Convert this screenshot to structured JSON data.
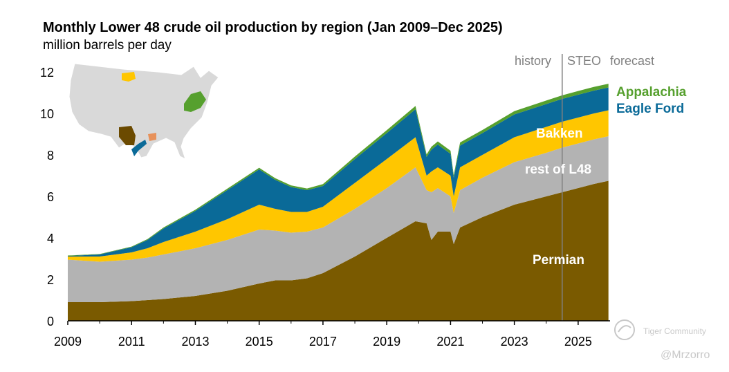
{
  "header": {
    "title": "Monthly Lower 48 crude oil production by region (Jan 2009–Dec 2025)",
    "subtitle": "million barrels per day"
  },
  "annotations": {
    "history": "history",
    "steo": "STEO",
    "forecast": "forecast"
  },
  "watermark": {
    "name": "Tiger Community",
    "handle": "@Mrzorro"
  },
  "colors": {
    "Permian": "#7a5a00",
    "rest of L48": "#b3b3b3",
    "Bakken": "#ffc600",
    "Eagle Ford": "#0a6a98",
    "Appalachia": "#56a02e"
  },
  "map": {
    "highlighted_regions": [
      "Bakken",
      "Appalachia",
      "Permian",
      "Eagle Ford",
      "Haynesville"
    ]
  },
  "chart_data": {
    "type": "area",
    "stacked": true,
    "title": "Monthly Lower 48 crude oil production by region (Jan 2009–Dec 2025)",
    "ylabel": "million barrels per day",
    "xlabel": "",
    "xlim": [
      2009,
      2026
    ],
    "ylim": [
      0,
      12
    ],
    "x_ticks": [
      2009,
      2011,
      2013,
      2015,
      2017,
      2019,
      2021,
      2023,
      2025
    ],
    "y_ticks": [
      0,
      2,
      4,
      6,
      8,
      10,
      12
    ],
    "forecast_start": 2024.5,
    "x": [
      2009,
      2010,
      2011,
      2011.5,
      2012,
      2013,
      2014,
      2015,
      2015.5,
      2016,
      2016.5,
      2017,
      2018,
      2019,
      2019.9,
      2020.25,
      2020.4,
      2020.6,
      2021,
      2021.1,
      2021.3,
      2022,
      2023,
      2024,
      2024.5,
      2025,
      2025.5,
      2025.95
    ],
    "series": [
      {
        "name": "Permian",
        "values": [
          0.9,
          0.9,
          0.95,
          1.0,
          1.05,
          1.2,
          1.45,
          1.8,
          1.95,
          1.95,
          2.05,
          2.3,
          3.1,
          4.0,
          4.8,
          4.7,
          3.9,
          4.3,
          4.3,
          3.7,
          4.5,
          5.0,
          5.6,
          6.0,
          6.2,
          6.4,
          6.6,
          6.75
        ]
      },
      {
        "name": "rest of L48",
        "values": [
          2.05,
          1.95,
          2.0,
          2.05,
          2.15,
          2.3,
          2.45,
          2.6,
          2.4,
          2.3,
          2.25,
          2.2,
          2.3,
          2.4,
          2.6,
          1.6,
          2.3,
          2.1,
          1.7,
          1.5,
          1.8,
          1.9,
          2.05,
          2.1,
          2.15,
          2.15,
          2.15,
          2.15
        ]
      },
      {
        "name": "Bakken",
        "values": [
          0.15,
          0.25,
          0.35,
          0.45,
          0.6,
          0.8,
          1.0,
          1.2,
          1.05,
          1.0,
          0.95,
          1.0,
          1.25,
          1.4,
          1.45,
          0.7,
          1.0,
          1.0,
          1.0,
          0.8,
          1.1,
          1.1,
          1.2,
          1.25,
          1.25,
          1.25,
          1.25,
          1.25
        ]
      },
      {
        "name": "Eagle Ford",
        "values": [
          0.03,
          0.1,
          0.25,
          0.4,
          0.65,
          1.0,
          1.4,
          1.7,
          1.4,
          1.2,
          1.05,
          1.0,
          1.15,
          1.25,
          1.35,
          0.9,
          1.05,
          1.1,
          1.05,
          0.9,
          1.05,
          1.05,
          1.1,
          1.1,
          1.1,
          1.1,
          1.1,
          1.1
        ]
      },
      {
        "name": "Appalachia",
        "values": [
          0.02,
          0.02,
          0.03,
          0.04,
          0.05,
          0.06,
          0.07,
          0.08,
          0.08,
          0.08,
          0.08,
          0.09,
          0.12,
          0.14,
          0.16,
          0.12,
          0.14,
          0.15,
          0.15,
          0.12,
          0.15,
          0.15,
          0.16,
          0.17,
          0.17,
          0.18,
          0.18,
          0.18
        ]
      }
    ],
    "legend": "direct labels on right"
  }
}
